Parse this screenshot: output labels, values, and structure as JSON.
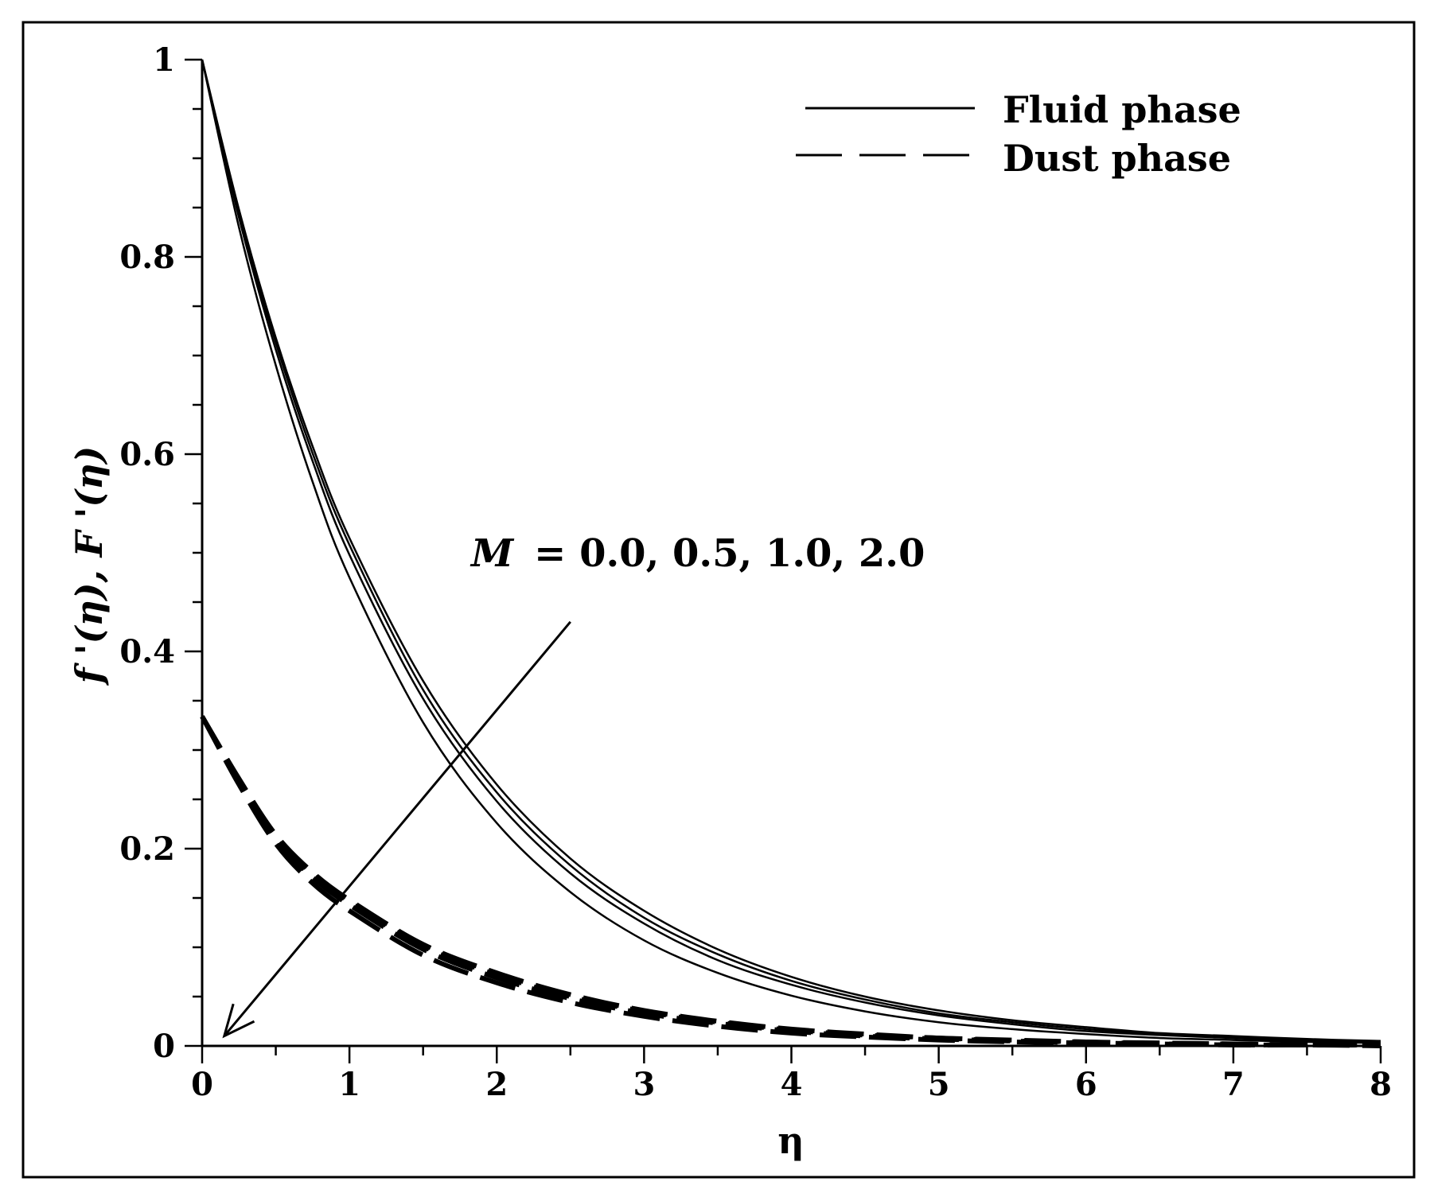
{
  "chart_data": {
    "type": "line",
    "title": "",
    "xlabel": "η",
    "ylabel": "f '(η), F '(η)",
    "xlim": [
      0,
      8
    ],
    "ylim": [
      0,
      1
    ],
    "x_ticks": [
      0,
      1,
      2,
      3,
      4,
      5,
      6,
      7,
      8
    ],
    "x_tick_labels": [
      "0",
      "1",
      "2",
      "3",
      "4",
      "5",
      "6",
      "7",
      "8"
    ],
    "y_ticks": [
      0,
      0.2,
      0.4,
      0.6,
      0.8,
      1
    ],
    "y_tick_labels": [
      "0",
      "0.2",
      "0.4",
      "0.6",
      "0.8",
      "1"
    ],
    "grid": false,
    "legend": {
      "placement": "top-right",
      "entries": [
        {
          "label": "Fluid phase",
          "style": "solid"
        },
        {
          "label": "Dust phase",
          "style": "dashed"
        }
      ]
    },
    "annotation": {
      "symbol": "M",
      "text": "= 0.0, 0.5, 1.0, 2.0",
      "arrow_from": [
        2.5,
        0.43
      ],
      "arrow_to": [
        0.15,
        0.01
      ]
    },
    "series": [
      {
        "style": "solid",
        "x": [
          0,
          0.25,
          0.5,
          0.75,
          1,
          1.5,
          2,
          2.5,
          3,
          3.5,
          4,
          4.5,
          5,
          5.5,
          6,
          6.5,
          7,
          7.5,
          8
        ],
        "values": [
          1.0,
          0.848,
          0.718,
          0.608,
          0.515,
          0.37,
          0.265,
          0.19,
          0.137,
          0.098,
          0.07,
          0.05,
          0.036,
          0.026,
          0.019,
          0.013,
          0.01,
          0.007,
          0.005
        ]
      },
      {
        "style": "solid",
        "x": [
          0,
          0.25,
          0.5,
          0.75,
          1,
          1.5,
          2,
          2.5,
          3,
          3.5,
          4,
          4.5,
          5,
          5.5,
          6,
          6.5,
          7,
          7.5,
          8
        ],
        "values": [
          1.0,
          0.844,
          0.713,
          0.601,
          0.508,
          0.361,
          0.257,
          0.183,
          0.13,
          0.093,
          0.066,
          0.047,
          0.033,
          0.024,
          0.017,
          0.012,
          0.009,
          0.006,
          0.004
        ]
      },
      {
        "style": "solid",
        "x": [
          0,
          0.25,
          0.5,
          0.75,
          1,
          1.5,
          2,
          2.5,
          3,
          3.5,
          4,
          4.5,
          5,
          5.5,
          6,
          6.5,
          7,
          7.5,
          8
        ],
        "values": [
          1.0,
          0.84,
          0.706,
          0.593,
          0.498,
          0.352,
          0.248,
          0.175,
          0.124,
          0.087,
          0.062,
          0.044,
          0.031,
          0.022,
          0.015,
          0.011,
          0.008,
          0.005,
          0.004
        ]
      },
      {
        "style": "solid",
        "x": [
          0,
          0.25,
          0.5,
          0.75,
          1,
          1.5,
          2,
          2.5,
          3,
          3.5,
          4,
          4.5,
          5,
          5.5,
          6,
          6.5,
          7,
          7.5,
          8
        ],
        "values": [
          1.0,
          0.83,
          0.69,
          0.572,
          0.475,
          0.328,
          0.226,
          0.156,
          0.107,
          0.074,
          0.051,
          0.035,
          0.024,
          0.017,
          0.012,
          0.008,
          0.006,
          0.004,
          0.003
        ]
      },
      {
        "style": "dashed",
        "x": [
          0,
          0.25,
          0.5,
          0.75,
          1,
          1.5,
          2,
          2.5,
          3,
          3.5,
          4,
          4.5,
          5,
          5.5,
          6,
          6.5,
          7,
          7.5,
          8
        ],
        "values": [
          0.334,
          0.271,
          0.214,
          0.176,
          0.148,
          0.103,
          0.074,
          0.052,
          0.036,
          0.025,
          0.017,
          0.012,
          0.008,
          0.006,
          0.004,
          0.003,
          0.002,
          0.001,
          0.001
        ]
      },
      {
        "style": "dashed",
        "x": [
          0,
          0.25,
          0.5,
          0.75,
          1,
          1.5,
          2,
          2.5,
          3,
          3.5,
          4,
          4.5,
          5,
          5.5,
          6,
          6.5,
          7,
          7.5,
          8
        ],
        "values": [
          0.334,
          0.27,
          0.212,
          0.174,
          0.146,
          0.101,
          0.072,
          0.05,
          0.035,
          0.024,
          0.016,
          0.011,
          0.008,
          0.005,
          0.004,
          0.002,
          0.002,
          0.001,
          0.001
        ]
      },
      {
        "style": "dashed",
        "x": [
          0,
          0.25,
          0.5,
          0.75,
          1,
          1.5,
          2,
          2.5,
          3,
          3.5,
          4,
          4.5,
          5,
          5.5,
          6,
          6.5,
          7,
          7.5,
          8
        ],
        "values": [
          0.334,
          0.268,
          0.21,
          0.171,
          0.143,
          0.098,
          0.069,
          0.048,
          0.033,
          0.023,
          0.015,
          0.01,
          0.007,
          0.005,
          0.003,
          0.002,
          0.001,
          0.001,
          0.001
        ]
      },
      {
        "style": "dashed",
        "x": [
          0,
          0.25,
          0.5,
          0.75,
          1,
          1.5,
          2,
          2.5,
          3,
          3.5,
          4,
          4.5,
          5,
          5.5,
          6,
          6.5,
          7,
          7.5,
          8
        ],
        "values": [
          0.334,
          0.265,
          0.205,
          0.165,
          0.137,
          0.092,
          0.064,
          0.044,
          0.03,
          0.02,
          0.013,
          0.009,
          0.006,
          0.004,
          0.003,
          0.002,
          0.001,
          0.001,
          0.0
        ]
      }
    ]
  }
}
